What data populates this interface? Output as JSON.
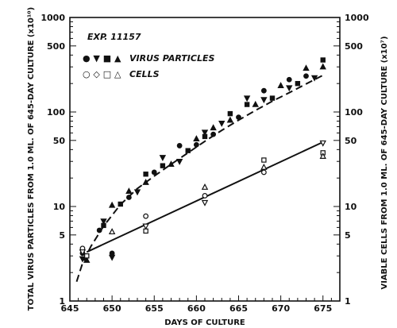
{
  "chart_data": {
    "type": "scatter",
    "annotation": "EXP. 11157",
    "xlabel": "DAYS OF CULTURE",
    "ylabel": "TOTAL VIRUS PARTICLES FROM 1.0 ML. OF 645-DAY CULTURE (x10¹⁰)",
    "y2label": "VIABLE CELLS FROM 1.0 ML. OF 645-DAY CULTURE (x10⁷)",
    "xlim": [
      645,
      677
    ],
    "ylim": [
      1,
      1000
    ],
    "yscale": "log",
    "x_ticks": [
      645,
      650,
      655,
      660,
      665,
      670,
      675
    ],
    "y_ticks": [
      1,
      5,
      10,
      50,
      100,
      500,
      1000
    ],
    "legend_position": "top-left",
    "series": [
      {
        "name": "VIRUS PARTICLES",
        "legend_symbols": "● ▼ ■ ▲",
        "marker": "filled",
        "color": "#111111",
        "x": [
          646.5,
          646.5,
          647,
          647,
          648.5,
          649,
          649,
          650,
          650,
          650,
          651,
          652,
          652,
          653,
          654,
          654,
          655,
          656,
          656,
          657,
          658,
          658,
          659,
          660,
          660,
          661,
          661,
          662,
          662,
          663,
          664,
          664,
          665,
          666,
          666,
          667,
          668,
          668,
          669,
          670,
          671,
          671,
          672,
          673,
          673,
          674,
          675,
          675
        ],
        "y": [
          3.2,
          2.8,
          3.0,
          2.7,
          5.6,
          7.0,
          6.3,
          10.3,
          3.2,
          2.9,
          10.6,
          14.5,
          12.5,
          14.3,
          22,
          18,
          23,
          33,
          27,
          28,
          44,
          30,
          39,
          52,
          45,
          61,
          55,
          68,
          58,
          76,
          96,
          82,
          88,
          140,
          120,
          120,
          168,
          135,
          140,
          190,
          220,
          180,
          200,
          290,
          240,
          230,
          355,
          300
        ]
      },
      {
        "name": "CELLS",
        "legend_symbols": "○ ◇ □ △",
        "marker": "open",
        "color": "#111111",
        "x": [
          646.5,
          646.5,
          647,
          650,
          654,
          654,
          654,
          661,
          661,
          661,
          668,
          668,
          668,
          675,
          675,
          675
        ],
        "y": [
          3.6,
          3.3,
          3.0,
          5.4,
          7.9,
          6.2,
          5.5,
          16,
          13,
          11,
          31,
          26,
          23,
          47,
          37,
          34
        ]
      }
    ],
    "fit_lines": [
      {
        "series": "VIRUS PARTICLES",
        "style": "dashed",
        "x": [
          645.8,
          646.5,
          647.5,
          649,
          651,
          653,
          655,
          657,
          659,
          661,
          663,
          665,
          667,
          669,
          671,
          673,
          675
        ],
        "y": [
          1.6,
          2.5,
          3.8,
          6.2,
          10.5,
          15.5,
          21,
          28,
          37,
          49,
          64,
          82,
          104,
          130,
          160,
          198,
          245
        ]
      },
      {
        "series": "CELLS",
        "style": "solid",
        "x": [
          647,
          675
        ],
        "y": [
          3.3,
          48
        ]
      }
    ]
  },
  "axes": {
    "x_tick_labels": [
      "645",
      "650",
      "655",
      "660",
      "665",
      "670",
      "675"
    ],
    "y_left_tick_labels": [
      "1",
      "5",
      "10",
      "50",
      "100",
      "500",
      "1000"
    ],
    "y_right_tick_labels": [
      "1",
      "5",
      "10",
      "50",
      "100",
      "500",
      "1000"
    ]
  }
}
